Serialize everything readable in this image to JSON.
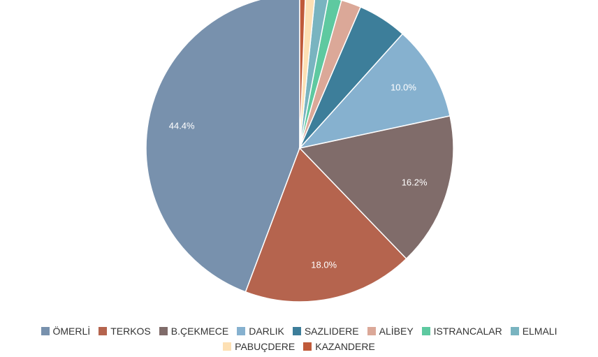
{
  "chart_data": {
    "type": "pie",
    "title": "",
    "series": [
      {
        "name": "ÖMERLİ",
        "value": 44.4,
        "label": "44.4%",
        "color": "#7891ad"
      },
      {
        "name": "TERKOS",
        "value": 18.0,
        "label": "18.0%",
        "color": "#b5644e"
      },
      {
        "name": "B.ÇEKMECE",
        "value": 16.2,
        "label": "16.2%",
        "color": "#806c6a"
      },
      {
        "name": "DARLIK",
        "value": 10.0,
        "label": "10.0%",
        "color": "#86b1cf"
      },
      {
        "name": "SAZLIDERE",
        "value": 5.2,
        "label": "",
        "color": "#3d7e9a"
      },
      {
        "name": "ALİBEY",
        "value": 2.1,
        "label": "",
        "color": "#dba898"
      },
      {
        "name": "ISTRANCALAR",
        "value": 1.4,
        "label": "",
        "color": "#5ec9a0"
      },
      {
        "name": "ELMALI",
        "value": 1.4,
        "label": "",
        "color": "#79b4c0"
      },
      {
        "name": "PABUÇDERE",
        "value": 1.0,
        "label": "",
        "color": "#fde0b4"
      },
      {
        "name": "KAZANDERE",
        "value": 0.6,
        "label": "",
        "color": "#c05a3a"
      }
    ],
    "legend_position": "bottom"
  }
}
